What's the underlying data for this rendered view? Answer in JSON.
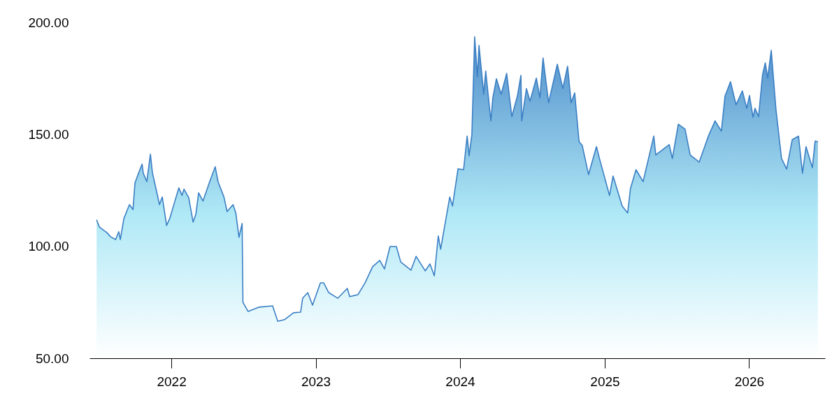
{
  "chart_data": {
    "type": "area",
    "x": [
      "2021-06-26",
      "2021-07-03",
      "2021-07-22",
      "2021-07-31",
      "2021-08-13",
      "2021-08-21",
      "2021-08-25",
      "2021-09-03",
      "2021-09-17",
      "2021-09-26",
      "2021-10-01",
      "2021-10-10",
      "2021-10-19",
      "2021-10-22",
      "2021-10-31",
      "2021-11-09",
      "2021-11-14",
      "2021-12-02",
      "2021-12-09",
      "2021-12-20",
      "2021-12-28",
      "2022-01-10",
      "2022-01-20",
      "2022-01-28",
      "2022-02-02",
      "2022-02-14",
      "2022-02-25",
      "2022-03-04",
      "2022-03-11",
      "2022-03-22",
      "2022-04-08",
      "2022-04-22",
      "2022-04-29",
      "2022-05-14",
      "2022-05-22",
      "2022-06-06",
      "2022-06-13",
      "2022-06-21",
      "2022-06-29",
      "2022-07-01",
      "2022-07-14",
      "2022-08-10",
      "2022-09-14",
      "2022-09-27",
      "2022-10-14",
      "2022-11-06",
      "2022-11-24",
      "2022-11-29",
      "2022-12-12",
      "2022-12-24",
      "2023-01-13",
      "2023-01-21",
      "2023-02-03",
      "2023-02-26",
      "2023-03-22",
      "2023-03-28",
      "2023-04-18",
      "2023-05-06",
      "2023-05-25",
      "2023-06-12",
      "2023-06-24",
      "2023-07-08",
      "2023-07-24",
      "2023-08-04",
      "2023-08-30",
      "2023-09-12",
      "2023-10-05",
      "2023-10-17",
      "2023-10-28",
      "2023-11-07",
      "2023-11-13",
      "2023-12-06",
      "2023-12-13",
      "2023-12-27",
      "2024-01-10",
      "2024-01-19",
      "2024-01-24",
      "2024-01-31",
      "2024-02-07",
      "2024-02-14",
      "2024-02-18",
      "2024-03-01",
      "2024-03-06",
      "2024-03-19",
      "2024-03-24",
      "2024-04-02",
      "2024-04-14",
      "2024-04-28",
      "2024-05-11",
      "2024-05-25",
      "2024-06-03",
      "2024-06-05",
      "2024-06-17",
      "2024-06-26",
      "2024-07-12",
      "2024-07-21",
      "2024-07-29",
      "2024-08-12",
      "2024-09-03",
      "2024-09-17",
      "2024-09-29",
      "2024-10-08",
      "2024-10-17",
      "2024-10-28",
      "2024-11-05",
      "2024-11-21",
      "2024-12-11",
      "2024-12-20",
      "2025-01-13",
      "2025-01-22",
      "2025-02-14",
      "2025-02-28",
      "2025-03-07",
      "2025-03-21",
      "2025-04-08",
      "2025-05-05",
      "2025-05-10",
      "2025-06-13",
      "2025-06-21",
      "2025-07-06",
      "2025-07-23",
      "2025-08-05",
      "2025-08-28",
      "2025-09-20",
      "2025-10-07",
      "2025-10-23",
      "2025-11-01",
      "2025-11-15",
      "2025-11-29",
      "2025-12-15",
      "2025-12-26",
      "2026-01-02",
      "2026-01-11",
      "2026-01-16",
      "2026-01-25",
      "2026-02-04",
      "2026-02-11",
      "2026-02-17",
      "2026-02-26",
      "2026-03-10",
      "2026-03-24",
      "2026-04-06",
      "2026-04-20",
      "2026-05-06",
      "2026-05-16",
      "2026-05-25",
      "2026-06-10",
      "2026-06-17",
      "2026-06-24"
    ],
    "series": [
      {
        "color": "#3b7fc4",
        "values": [
          111.8,
          108.6,
          106.1,
          104.3,
          103.0,
          106.5,
          103.0,
          112.4,
          118.6,
          116.4,
          128.3,
          132.6,
          136.7,
          132.6,
          128.9,
          141.1,
          133.0,
          118.6,
          122.0,
          109.3,
          112.4,
          120.2,
          126.1,
          122.7,
          125.5,
          121.7,
          110.8,
          114.3,
          123.9,
          120.2,
          128.9,
          135.5,
          128.9,
          122.0,
          115.5,
          118.6,
          114.9,
          104.0,
          110.2,
          75.0,
          70.9,
          72.8,
          73.4,
          66.5,
          67.2,
          70.3,
          70.6,
          76.8,
          79.3,
          73.7,
          83.7,
          83.7,
          79.3,
          76.8,
          81.2,
          77.5,
          78.4,
          83.7,
          90.9,
          93.7,
          89.9,
          99.9,
          99.9,
          93.0,
          89.3,
          95.5,
          89.0,
          92.1,
          86.8,
          104.6,
          98.7,
          122.0,
          118.0,
          134.6,
          134.2,
          149.2,
          140.4,
          149.8,
          193.5,
          175.7,
          189.7,
          167.9,
          178.2,
          156.0,
          166.3,
          174.8,
          167.9,
          177.2,
          157.9,
          167.0,
          176.3,
          156.0,
          170.4,
          164.8,
          175.1,
          166.3,
          184.1,
          164.1,
          181.3,
          170.4,
          180.4,
          164.1,
          168.5,
          146.7,
          145.1,
          132.0,
          144.5,
          138.3,
          122.7,
          131.4,
          118.0,
          114.9,
          125.8,
          134.2,
          128.9,
          149.2,
          140.8,
          145.4,
          139.2,
          154.5,
          152.3,
          140.8,
          137.6,
          149.2,
          156.0,
          151.4,
          167.0,
          173.5,
          163.2,
          169.4,
          161.6,
          167.3,
          157.6,
          161.6,
          157.9,
          176.6,
          181.9,
          175.1,
          187.5,
          161.0,
          139.2,
          134.5,
          147.6,
          149.2,
          132.6,
          144.5,
          135.1,
          147.0,
          146.7
        ]
      }
    ],
    "xlim": [
      "2021-06-08",
      "2026-07-12"
    ],
    "xticks": [
      "2022",
      "2023",
      "2024",
      "2025",
      "2026"
    ],
    "ylim": [
      50,
      200
    ],
    "yticks": [
      {
        "value": 50,
        "label": "50.00"
      },
      {
        "value": 100,
        "label": "100.00"
      },
      {
        "value": 150,
        "label": "150.00"
      },
      {
        "value": 200,
        "label": "200.00"
      }
    ],
    "grid": false
  }
}
